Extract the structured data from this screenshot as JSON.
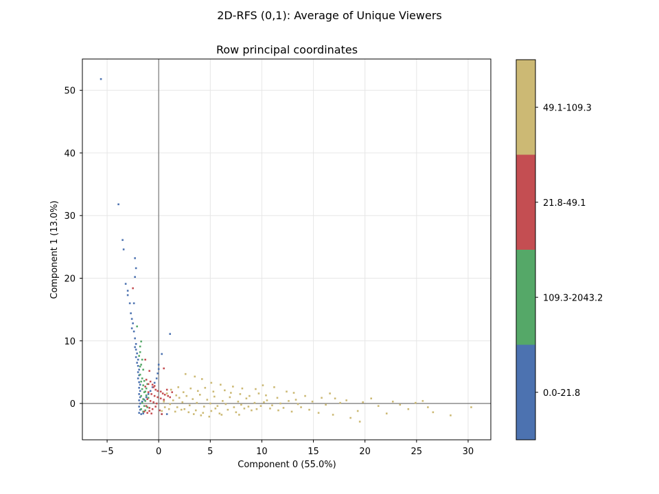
{
  "chart_data": {
    "type": "scatter",
    "suptitle": "2D-RFS (0,1): Average of Unique Viewers",
    "title": "Row principal coordinates",
    "xlabel": "Component 0 (55.0%)",
    "ylabel": "Component 1 (13.0%)",
    "xlim": [
      -7.4,
      32.2
    ],
    "ylim": [
      -5.8,
      55.0
    ],
    "xticks": [
      -5,
      0,
      5,
      10,
      15,
      20,
      25,
      30
    ],
    "xtick_labels": [
      "−5",
      "0",
      "5",
      "10",
      "15",
      "20",
      "25",
      "30"
    ],
    "yticks": [
      0,
      10,
      20,
      30,
      40,
      50
    ],
    "ytick_labels": [
      "0",
      "10",
      "20",
      "30",
      "40",
      "50"
    ],
    "grid": true,
    "reference_lines": {
      "x": 0,
      "y": 0
    },
    "colorbar": {
      "categories": [
        {
          "label": "0.0-21.8",
          "color": "#4c72b0"
        },
        {
          "label": "109.3-2043.2",
          "color": "#55a868"
        },
        {
          "label": "21.8-49.1",
          "color": "#c44e52"
        },
        {
          "label": "49.1-109.3",
          "color": "#ccb974"
        }
      ]
    },
    "series": [
      {
        "label": "0.0-21.8",
        "color": "#4c72b0",
        "points": [
          [
            -5.6,
            51.8
          ],
          [
            -3.9,
            31.8
          ],
          [
            -3.5,
            26.1
          ],
          [
            -3.4,
            24.6
          ],
          [
            -2.3,
            23.2
          ],
          [
            -2.2,
            21.6
          ],
          [
            -2.3,
            20.2
          ],
          [
            -3.2,
            19.1
          ],
          [
            -3.0,
            18.0
          ],
          [
            -3.0,
            17.3
          ],
          [
            -2.8,
            16.0
          ],
          [
            -2.4,
            16.0
          ],
          [
            -2.7,
            14.4
          ],
          [
            -2.6,
            13.5
          ],
          [
            -2.5,
            12.8
          ],
          [
            -2.6,
            12.0
          ],
          [
            -2.4,
            11.5
          ],
          [
            -2.3,
            10.4
          ],
          [
            -2.2,
            9.5
          ],
          [
            -2.3,
            9.0
          ],
          [
            -2.2,
            8.6
          ],
          [
            -2.1,
            8.0
          ],
          [
            -2.2,
            7.4
          ],
          [
            -2.0,
            7.0
          ],
          [
            -2.1,
            6.5
          ],
          [
            -2.0,
            6.0
          ],
          [
            -1.9,
            5.4
          ],
          [
            -2.0,
            5.0
          ],
          [
            -1.9,
            4.5
          ],
          [
            -2.0,
            4.0
          ],
          [
            -1.9,
            3.4
          ],
          [
            -1.8,
            3.0
          ],
          [
            -1.9,
            2.5
          ],
          [
            -1.8,
            2.0
          ],
          [
            -1.9,
            1.5
          ],
          [
            -1.8,
            1.0
          ],
          [
            -1.9,
            0.5
          ],
          [
            -1.8,
            0.0
          ],
          [
            -1.9,
            -0.5
          ],
          [
            -1.8,
            -1.0
          ],
          [
            -1.9,
            -1.5
          ],
          [
            -1.7,
            -1.7
          ],
          [
            -1.5,
            -1.6
          ],
          [
            -1.6,
            0.3
          ],
          [
            -1.4,
            0.6
          ],
          [
            -1.2,
            1.0
          ],
          [
            -1.0,
            1.5
          ],
          [
            -0.8,
            2.0
          ],
          [
            -0.6,
            2.6
          ],
          [
            -0.4,
            3.3
          ],
          [
            -0.2,
            4.0
          ],
          [
            -0.1,
            4.8
          ],
          [
            0.0,
            5.5
          ],
          [
            0.0,
            6.2
          ],
          [
            0.3,
            7.9
          ],
          [
            1.1,
            11.1
          ],
          [
            0.3,
            -1.7
          ],
          [
            0.8,
            -1.7
          ]
        ]
      },
      {
        "label": "109.3-2043.2",
        "color": "#55a868",
        "points": [
          [
            -1.7,
            9.9
          ],
          [
            -2.1,
            12.3
          ],
          [
            -1.8,
            9.1
          ],
          [
            -1.8,
            8.2
          ],
          [
            -1.6,
            7.0
          ],
          [
            -1.7,
            6.2
          ],
          [
            -1.5,
            5.4
          ],
          [
            -1.8,
            4.6
          ],
          [
            -1.6,
            4.0
          ],
          [
            -1.7,
            3.5
          ],
          [
            -1.5,
            2.9
          ],
          [
            -1.6,
            2.3
          ],
          [
            -1.4,
            1.8
          ],
          [
            -1.7,
            1.2
          ],
          [
            -1.5,
            0.7
          ],
          [
            -1.6,
            0.1
          ],
          [
            -1.4,
            -0.4
          ],
          [
            -1.7,
            -0.9
          ],
          [
            -1.5,
            -1.3
          ],
          [
            -1.3,
            0.4
          ],
          [
            -1.2,
            1.3
          ],
          [
            -1.2,
            2.4
          ],
          [
            -1.1,
            3.1
          ],
          [
            -1.3,
            -1.1
          ],
          [
            -1.0,
            0.9
          ],
          [
            -1.4,
            3.6
          ],
          [
            -1.9,
            7.6
          ],
          [
            -1.8,
            5.9
          ],
          [
            -1.3,
            1.9
          ],
          [
            -1.1,
            -0.6
          ]
        ]
      },
      {
        "label": "21.8-49.1",
        "color": "#c44e52",
        "points": [
          [
            -2.5,
            18.4
          ],
          [
            -1.3,
            7.0
          ],
          [
            -0.9,
            5.2
          ],
          [
            0.5,
            5.6
          ],
          [
            -1.2,
            3.8
          ],
          [
            -0.8,
            3.5
          ],
          [
            -0.6,
            3.0
          ],
          [
            -0.5,
            2.6
          ],
          [
            -0.3,
            2.2
          ],
          [
            -0.1,
            2.0
          ],
          [
            0.2,
            1.9
          ],
          [
            0.4,
            1.6
          ],
          [
            0.6,
            1.4
          ],
          [
            0.9,
            1.2
          ],
          [
            1.1,
            1.0
          ],
          [
            -1.0,
            1.8
          ],
          [
            -0.7,
            1.5
          ],
          [
            -0.4,
            1.2
          ],
          [
            -0.1,
            1.0
          ],
          [
            0.2,
            0.8
          ],
          [
            0.5,
            0.6
          ],
          [
            -1.1,
            0.7
          ],
          [
            -0.8,
            0.4
          ],
          [
            -0.5,
            0.2
          ],
          [
            -0.2,
            0.0
          ],
          [
            -1.2,
            -0.4
          ],
          [
            -0.9,
            -0.7
          ],
          [
            -0.6,
            -0.9
          ],
          [
            -1.4,
            -1.3
          ],
          [
            -1.1,
            -1.5
          ],
          [
            -0.7,
            -1.6
          ],
          [
            -1.3,
            2.7
          ],
          [
            -0.3,
            -0.5
          ],
          [
            0.1,
            -1.1
          ],
          [
            0.3,
            -1.7
          ],
          [
            -1.0,
            3.1
          ],
          [
            -0.4,
            2.8
          ],
          [
            0.8,
            2.2
          ],
          [
            1.3,
            1.8
          ],
          [
            -0.9,
            -1.2
          ]
        ]
      },
      {
        "label": "49.1-109.3",
        "color": "#ccb974",
        "points": [
          [
            2.6,
            4.7
          ],
          [
            3.5,
            4.3
          ],
          [
            4.2,
            3.9
          ],
          [
            5.1,
            3.3
          ],
          [
            6.0,
            3.0
          ],
          [
            7.2,
            2.7
          ],
          [
            8.1,
            2.4
          ],
          [
            9.4,
            2.3
          ],
          [
            10.1,
            2.9
          ],
          [
            11.2,
            2.6
          ],
          [
            12.4,
            1.9
          ],
          [
            13.1,
            1.7
          ],
          [
            14.2,
            1.2
          ],
          [
            15.8,
            0.9
          ],
          [
            16.6,
            1.6
          ],
          [
            17.1,
            0.8
          ],
          [
            18.2,
            0.5
          ],
          [
            19.3,
            -1.2
          ],
          [
            19.8,
            0.2
          ],
          [
            20.6,
            0.8
          ],
          [
            21.3,
            -0.4
          ],
          [
            22.1,
            -1.6
          ],
          [
            22.7,
            0.3
          ],
          [
            23.4,
            -0.2
          ],
          [
            24.2,
            -0.9
          ],
          [
            24.9,
            0.1
          ],
          [
            25.6,
            0.4
          ],
          [
            26.1,
            -0.6
          ],
          [
            26.6,
            -1.4
          ],
          [
            28.3,
            -1.9
          ],
          [
            30.3,
            -0.6
          ],
          [
            19.5,
            -2.9
          ],
          [
            18.6,
            -2.3
          ],
          [
            16.9,
            -1.8
          ],
          [
            15.5,
            -1.5
          ],
          [
            14.6,
            -1.0
          ],
          [
            13.8,
            -0.6
          ],
          [
            12.9,
            -1.3
          ],
          [
            11.6,
            -1.1
          ],
          [
            10.8,
            -0.8
          ],
          [
            9.9,
            -0.4
          ],
          [
            9.0,
            -1.1
          ],
          [
            8.3,
            -0.8
          ],
          [
            7.5,
            -1.4
          ],
          [
            6.7,
            -1.0
          ],
          [
            5.9,
            -1.6
          ],
          [
            5.1,
            -1.2
          ],
          [
            4.3,
            -1.5
          ],
          [
            3.6,
            -1.1
          ],
          [
            2.9,
            -1.4
          ],
          [
            2.2,
            -1.0
          ],
          [
            1.6,
            -1.3
          ],
          [
            1.0,
            -0.9
          ],
          [
            0.6,
            -0.6
          ],
          [
            0.3,
            -1.2
          ],
          [
            1.4,
            0.5
          ],
          [
            2.0,
            0.9
          ],
          [
            2.7,
            1.2
          ],
          [
            3.3,
            0.7
          ],
          [
            4.0,
            1.4
          ],
          [
            4.7,
            0.6
          ],
          [
            5.4,
            1.1
          ],
          [
            6.2,
            0.4
          ],
          [
            6.9,
            1.0
          ],
          [
            7.7,
            0.3
          ],
          [
            8.5,
            0.8
          ],
          [
            9.3,
            0.1
          ],
          [
            10.5,
            0.5
          ],
          [
            11.8,
            0.0
          ],
          [
            12.6,
            0.4
          ],
          [
            13.5,
            -0.1
          ],
          [
            14.9,
            0.3
          ],
          [
            16.2,
            -0.2
          ],
          [
            17.6,
            0.1
          ],
          [
            1.2,
            2.2
          ],
          [
            1.9,
            2.6
          ],
          [
            2.4,
            1.8
          ],
          [
            3.1,
            2.4
          ],
          [
            3.8,
            2.0
          ],
          [
            4.5,
            2.5
          ],
          [
            5.3,
            1.9
          ],
          [
            6.4,
            2.1
          ],
          [
            7.0,
            1.7
          ],
          [
            7.9,
            1.5
          ],
          [
            8.8,
            1.2
          ],
          [
            9.7,
            1.6
          ],
          [
            10.4,
            1.3
          ],
          [
            11.5,
            0.9
          ],
          [
            0.8,
            1.6
          ],
          [
            1.7,
            1.3
          ],
          [
            2.3,
            0.2
          ],
          [
            3.0,
            -0.3
          ],
          [
            3.7,
            0.1
          ],
          [
            4.4,
            -0.5
          ],
          [
            5.0,
            0.0
          ],
          [
            5.7,
            -0.4
          ],
          [
            6.5,
            -0.1
          ],
          [
            7.3,
            -0.6
          ],
          [
            8.0,
            -0.2
          ],
          [
            8.7,
            -0.5
          ],
          [
            9.5,
            -0.9
          ],
          [
            10.2,
            0.2
          ],
          [
            11.0,
            -0.3
          ],
          [
            12.1,
            -0.7
          ],
          [
            13.3,
            0.6
          ],
          [
            0.5,
            0.3
          ],
          [
            1.1,
            -0.1
          ],
          [
            1.8,
            -0.6
          ],
          [
            2.5,
            -0.9
          ],
          [
            3.4,
            -1.7
          ],
          [
            4.1,
            -1.9
          ],
          [
            4.9,
            -2.1
          ],
          [
            5.5,
            -0.8
          ],
          [
            6.1,
            -1.8
          ],
          [
            7.8,
            -1.8
          ]
        ]
      }
    ]
  }
}
